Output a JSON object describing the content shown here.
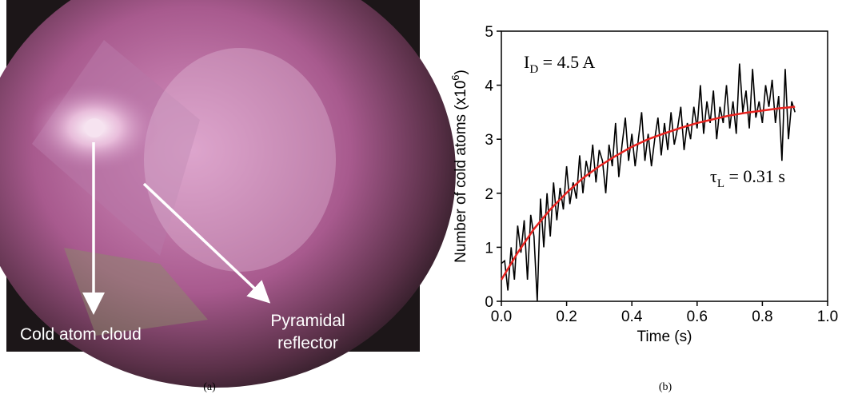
{
  "photo": {
    "labels": {
      "cloud": "Cold atom cloud",
      "reflector": [
        "Pyramidal",
        "reflector"
      ]
    },
    "caption": "(a)"
  },
  "chart_data": {
    "type": "line",
    "caption": "(b)",
    "xlabel": "Time (s)",
    "ylabel": [
      "Number of cold atoms (x10",
      "6",
      ")"
    ],
    "annotations": [
      [
        "I",
        "D",
        " = 4.5 A"
      ],
      [
        "τ",
        "L",
        " = 0.31 s"
      ]
    ],
    "xlim": [
      0,
      1.0
    ],
    "ylim": [
      0,
      5
    ],
    "xticks": [
      {
        "value": 0,
        "label": "0.0"
      },
      {
        "value": 0.2,
        "label": "0.2"
      },
      {
        "value": 0.4,
        "label": "0.4"
      },
      {
        "value": 0.6,
        "label": "0.6"
      },
      {
        "value": 0.8,
        "label": "0.8"
      },
      {
        "value": 1.0,
        "label": "1.0"
      }
    ],
    "yticks": [
      0,
      1,
      2,
      3,
      4,
      5
    ],
    "series": [
      {
        "color": "#000000",
        "x": [
          0.0,
          0.01,
          0.02,
          0.03,
          0.04,
          0.05,
          0.06,
          0.07,
          0.08,
          0.09,
          0.1,
          0.11,
          0.12,
          0.13,
          0.14,
          0.15,
          0.16,
          0.17,
          0.18,
          0.19,
          0.2,
          0.21,
          0.22,
          0.23,
          0.24,
          0.25,
          0.26,
          0.27,
          0.28,
          0.29,
          0.3,
          0.31,
          0.32,
          0.33,
          0.34,
          0.35,
          0.36,
          0.37,
          0.38,
          0.39,
          0.4,
          0.41,
          0.42,
          0.43,
          0.44,
          0.45,
          0.46,
          0.47,
          0.48,
          0.49,
          0.5,
          0.51,
          0.52,
          0.53,
          0.54,
          0.55,
          0.56,
          0.57,
          0.58,
          0.59,
          0.6,
          0.61,
          0.62,
          0.63,
          0.64,
          0.65,
          0.66,
          0.67,
          0.68,
          0.69,
          0.7,
          0.71,
          0.72,
          0.73,
          0.74,
          0.75,
          0.76,
          0.77,
          0.78,
          0.79,
          0.8,
          0.81,
          0.82,
          0.83,
          0.84,
          0.85,
          0.86,
          0.87,
          0.88,
          0.89,
          0.9
        ],
        "values": [
          0.7,
          0.75,
          0.2,
          1.0,
          0.4,
          1.4,
          0.9,
          1.5,
          0.4,
          1.6,
          1.2,
          0.0,
          1.9,
          1.0,
          2.0,
          1.2,
          2.2,
          1.5,
          2.1,
          1.7,
          2.5,
          1.8,
          2.2,
          1.9,
          2.7,
          2.0,
          2.6,
          2.3,
          2.9,
          2.2,
          2.8,
          2.6,
          2.0,
          2.9,
          2.5,
          3.3,
          2.3,
          2.9,
          3.4,
          2.6,
          3.1,
          2.5,
          3.0,
          3.5,
          2.6,
          3.1,
          2.5,
          3.0,
          3.4,
          2.7,
          3.3,
          2.8,
          3.5,
          2.9,
          3.2,
          3.6,
          2.8,
          3.3,
          3.0,
          3.6,
          3.2,
          4.0,
          3.1,
          3.7,
          3.3,
          3.9,
          3.0,
          3.6,
          3.3,
          4.0,
          3.2,
          3.7,
          3.1,
          4.4,
          3.5,
          3.9,
          3.2,
          4.3,
          3.4,
          3.7,
          3.3,
          4.0,
          3.6,
          4.1,
          3.3,
          3.8,
          2.6,
          4.3,
          3.0,
          3.7,
          3.5
        ]
      },
      {
        "color": "#e8231f",
        "x": [
          0,
          0.05,
          0.1,
          0.15,
          0.2,
          0.25,
          0.3,
          0.35,
          0.4,
          0.45,
          0.5,
          0.55,
          0.6,
          0.65,
          0.7,
          0.75,
          0.8,
          0.85,
          0.9
        ],
        "values": [
          0.4,
          0.9,
          1.34,
          1.7,
          2.01,
          2.28,
          2.5,
          2.69,
          2.86,
          3.0,
          3.11,
          3.21,
          3.3,
          3.37,
          3.44,
          3.49,
          3.53,
          3.57,
          3.6
        ]
      }
    ]
  }
}
